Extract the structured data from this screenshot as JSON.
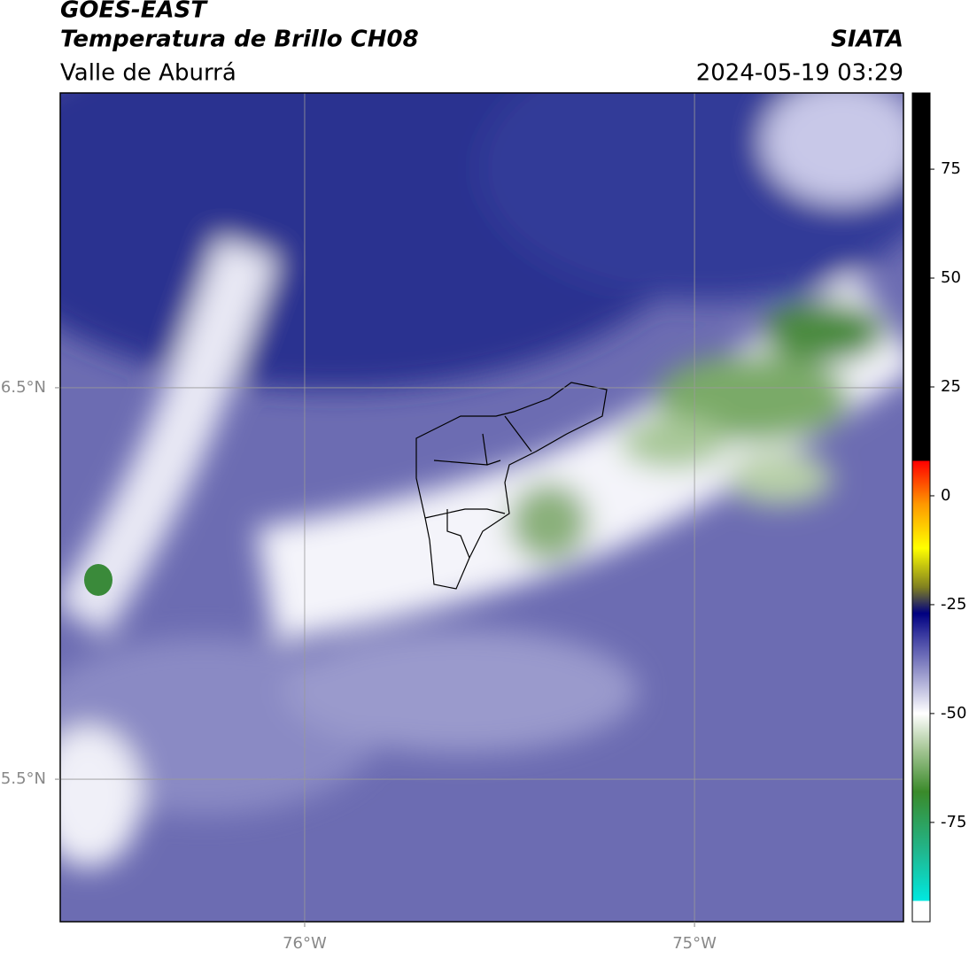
{
  "header": {
    "title": "GOES-EAST",
    "subtitle": "Temperatura de Brillo CH08",
    "region": "Valle de Aburrá",
    "source": "SIATA",
    "datetime": "2024-05-19 03:29"
  },
  "map": {
    "xlim": [
      -76.627,
      -74.464
    ],
    "ylim": [
      5.136,
      7.253
    ],
    "lon_ticks": [
      {
        "value": -76,
        "label": "76°W"
      },
      {
        "value": -75,
        "label": "75°W"
      }
    ],
    "lat_ticks": [
      {
        "value": 6.5,
        "label": "6.5°N"
      },
      {
        "value": 5.5,
        "label": "5.5°N"
      }
    ],
    "grid": true
  },
  "colorbar": {
    "lim": [
      -97.8,
      92.5
    ],
    "ticks": [
      75,
      50,
      25,
      0,
      -25,
      -50,
      -75
    ],
    "stops": [
      {
        "value": -97.8,
        "color": "#ffffff"
      },
      {
        "value": -93,
        "color": "#ffffff"
      },
      {
        "value": -93,
        "color": "#00e8e0"
      },
      {
        "value": -82,
        "color": "#20b890"
      },
      {
        "value": -68,
        "color": "#3a8a2a"
      },
      {
        "value": -58,
        "color": "#a8c898"
      },
      {
        "value": -50,
        "color": "#ffffff"
      },
      {
        "value": -40,
        "color": "#9090c8"
      },
      {
        "value": -32,
        "color": "#3a3aa0"
      },
      {
        "value": -27,
        "color": "#000080"
      },
      {
        "value": -21,
        "color": "#808020"
      },
      {
        "value": -12,
        "color": "#ffff00"
      },
      {
        "value": -2,
        "color": "#ff9900"
      },
      {
        "value": 8,
        "color": "#ff0000"
      },
      {
        "value": 8,
        "color": "#000000"
      },
      {
        "value": 92.5,
        "color": "#000000"
      }
    ]
  }
}
